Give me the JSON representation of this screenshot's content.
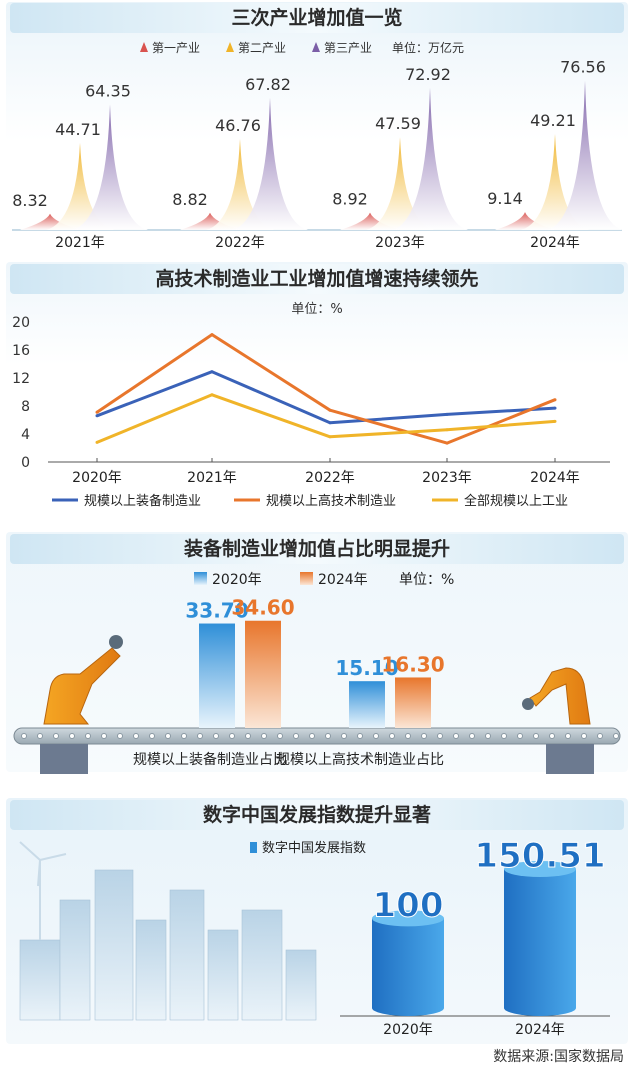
{
  "sources": "数据来源:国家数据局",
  "chart_data": [
    {
      "type": "area",
      "title": "三次产业增加值一览",
      "unit_label": "单位：万亿元",
      "categories": [
        "2021年",
        "2022年",
        "2023年",
        "2024年"
      ],
      "series": [
        {
          "name": "第一产业",
          "values": [
            8.32,
            8.82,
            8.92,
            9.14
          ],
          "color": "#d9534f"
        },
        {
          "name": "第二产业",
          "values": [
            44.71,
            46.76,
            47.59,
            49.21
          ],
          "color": "#f0b429"
        },
        {
          "name": "第三产业",
          "values": [
            64.35,
            67.82,
            72.92,
            76.56
          ],
          "color": "#7b5ea7"
        }
      ],
      "ylim": [
        0,
        80
      ]
    },
    {
      "type": "line",
      "title": "高技术制造业工业增加值增速持续领先",
      "unit_label": "单位：%",
      "x": [
        "2020年",
        "2021年",
        "2022年",
        "2023年",
        "2024年"
      ],
      "yticks": [
        0,
        4,
        8,
        12,
        16,
        20
      ],
      "ylim": [
        0,
        20
      ],
      "series": [
        {
          "name": "规模以上装备制造业",
          "values": [
            6.6,
            12.9,
            5.6,
            6.8,
            7.7
          ],
          "color": "#3a62b8"
        },
        {
          "name": "规模以上高技术制造业",
          "values": [
            7.1,
            18.2,
            7.4,
            2.7,
            8.9
          ],
          "color": "#e8762c"
        },
        {
          "name": "全部规模以上工业",
          "values": [
            2.8,
            9.6,
            3.6,
            4.6,
            5.8
          ],
          "color": "#f0b429"
        }
      ],
      "grid": false,
      "legend": "bottom"
    },
    {
      "type": "bar",
      "title": "装备制造业增加值占比明显提升",
      "unit_label": "单位：%",
      "categories": [
        "规模以上装备制造业占比",
        "规模以上高技术制造业占比"
      ],
      "series": [
        {
          "name": "2020年",
          "values": [
            33.7,
            15.1
          ],
          "labels": [
            "33.70",
            "15.10"
          ],
          "color": "#2f8fd8"
        },
        {
          "name": "2024年",
          "values": [
            34.6,
            16.3
          ],
          "labels": [
            "34.60",
            "16.30"
          ],
          "color": "#e8762c"
        }
      ],
      "ylim": [
        0,
        40
      ]
    },
    {
      "type": "bar",
      "title": "数字中国发展指数提升显著",
      "categories": [
        "2020年",
        "2024年"
      ],
      "series": [
        {
          "name": "数字中国发展指数",
          "values": [
            100,
            150.51
          ],
          "labels": [
            "100",
            "150.51"
          ],
          "color": "#2f8fd8"
        }
      ],
      "ylim": [
        0,
        170
      ]
    }
  ]
}
